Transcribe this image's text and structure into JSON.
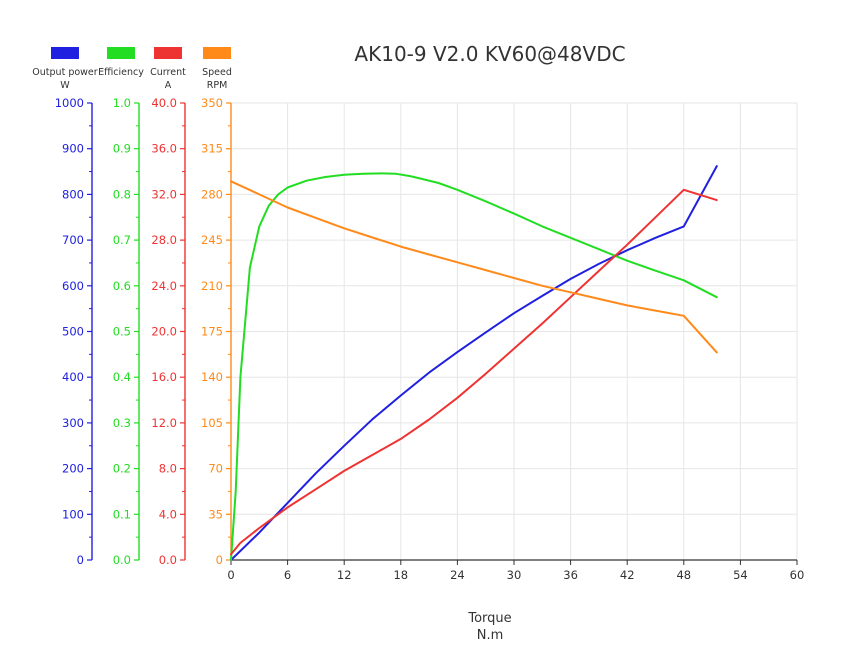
{
  "chart_data": {
    "type": "line",
    "title": "AK10-9 V2.0 KV60@48VDC",
    "xlabel": "Torque",
    "xunit": "N.m",
    "xlim": [
      0,
      60
    ],
    "xticks": [
      "0",
      "6",
      "12",
      "18",
      "24",
      "30",
      "36",
      "42",
      "48",
      "54",
      "60"
    ],
    "grid": true,
    "legend_position": "top-left",
    "axes": [
      {
        "id": "power",
        "name": "Output power",
        "unit": "W",
        "color": "#2020e0",
        "ylim": [
          0,
          1000
        ],
        "ticks": [
          "0",
          "100",
          "200",
          "300",
          "400",
          "500",
          "600",
          "700",
          "800",
          "900",
          "1000"
        ]
      },
      {
        "id": "eff",
        "name": "Efficiency",
        "unit": "",
        "color": "#22dd22",
        "ylim": [
          0,
          1
        ],
        "ticks": [
          "0.0",
          "0.1",
          "0.2",
          "0.3",
          "0.4",
          "0.5",
          "0.6",
          "0.7",
          "0.8",
          "0.9",
          "1.0"
        ]
      },
      {
        "id": "current",
        "name": "Current",
        "unit": "A",
        "color": "#ee3333",
        "ylim": [
          0,
          40
        ],
        "ticks": [
          "0.0",
          "4.0",
          "8.0",
          "12.0",
          "16.0",
          "20.0",
          "24.0",
          "28.0",
          "32.0",
          "36.0",
          "40.0"
        ]
      },
      {
        "id": "speed",
        "name": "Speed",
        "unit": "RPM",
        "color": "#ff8a1a",
        "ylim": [
          0,
          350
        ],
        "ticks": [
          "0",
          "35",
          "70",
          "105",
          "140",
          "175",
          "210",
          "245",
          "280",
          "315",
          "350"
        ]
      }
    ],
    "series": [
      {
        "axis": "power",
        "x": [
          0,
          3,
          6,
          9,
          12,
          15,
          18,
          21,
          24,
          27,
          30,
          33,
          36,
          39,
          42,
          45,
          48,
          51.5
        ],
        "y": [
          0,
          60,
          125,
          190,
          250,
          308,
          360,
          410,
          455,
          498,
          540,
          578,
          615,
          648,
          678,
          705,
          730,
          862
        ]
      },
      {
        "axis": "eff",
        "x": [
          0,
          0.5,
          1,
          2,
          3,
          4,
          5,
          6,
          8,
          10,
          12,
          14,
          16,
          17.5,
          19,
          20,
          22,
          24,
          27,
          30,
          33,
          36,
          39,
          42,
          45,
          48,
          51.5
        ],
        "y": [
          0,
          0.15,
          0.4,
          0.64,
          0.73,
          0.775,
          0.8,
          0.815,
          0.83,
          0.838,
          0.843,
          0.845,
          0.846,
          0.845,
          0.84,
          0.835,
          0.825,
          0.81,
          0.785,
          0.758,
          0.73,
          0.705,
          0.68,
          0.655,
          0.633,
          0.612,
          0.575
        ]
      },
      {
        "axis": "current",
        "x": [
          0,
          1,
          3,
          6,
          9,
          12,
          15,
          18,
          21,
          24,
          27,
          30,
          33,
          36,
          39,
          42,
          45,
          48,
          51.5
        ],
        "y": [
          0.5,
          1.5,
          2.8,
          4.6,
          6.2,
          7.8,
          9.2,
          10.6,
          12.3,
          14.2,
          16.3,
          18.5,
          20.7,
          23.0,
          25.3,
          27.6,
          30.0,
          32.4,
          31.5
        ]
      },
      {
        "axis": "speed",
        "x": [
          0,
          3,
          6,
          9,
          12,
          15,
          18,
          21,
          24,
          27,
          30,
          33,
          36,
          39,
          42,
          45,
          48,
          51.5
        ],
        "y": [
          290,
          280,
          270,
          262,
          254,
          247,
          240,
          234,
          228,
          222,
          216,
          210,
          205,
          200,
          195,
          191,
          187,
          159
        ]
      }
    ]
  }
}
